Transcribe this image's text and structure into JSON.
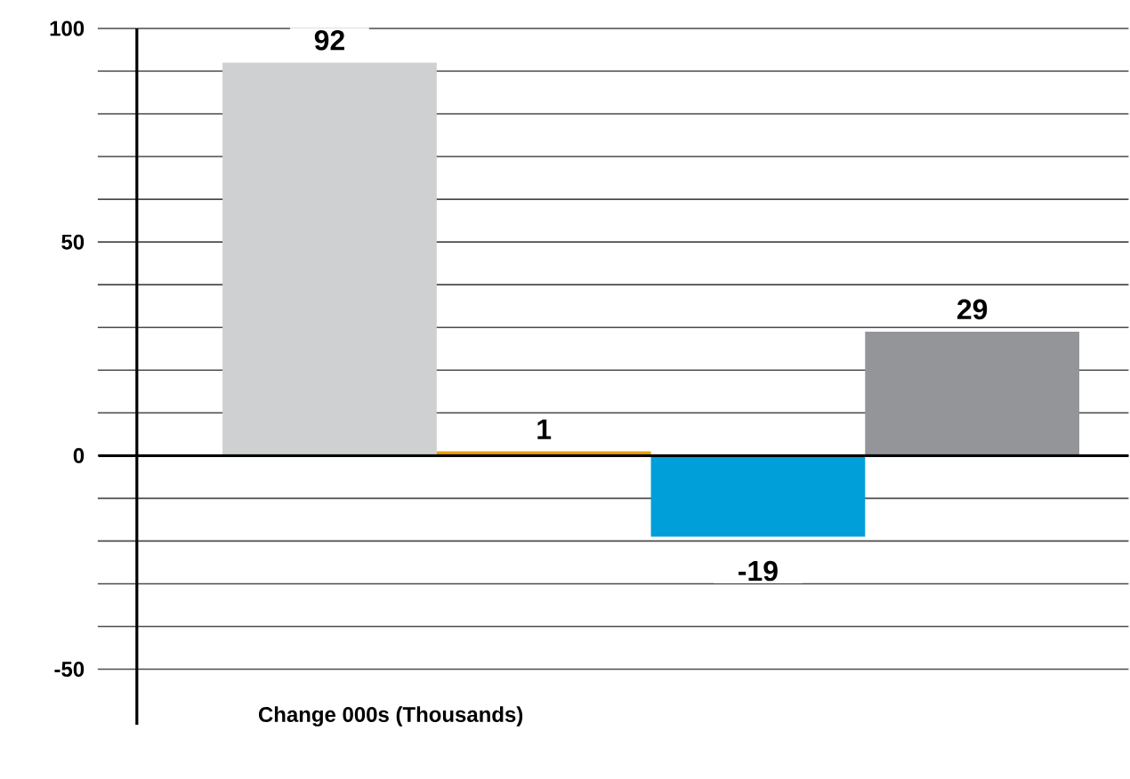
{
  "chart_data": {
    "type": "bar",
    "xlabel": "Change 000s (Thousands)",
    "categories": [
      null,
      null,
      null,
      null
    ],
    "values": [
      92,
      1,
      -19,
      29
    ],
    "colors": [
      "#cfd0d2",
      "#e8a200",
      "#009fda",
      "#939598"
    ],
    "ylim": [
      -63,
      100
    ],
    "yticks": [
      {
        "value": -50,
        "label": "-50"
      },
      {
        "value": -40,
        "label": null
      },
      {
        "value": -30,
        "label": null
      },
      {
        "value": -20,
        "label": null
      },
      {
        "value": -10,
        "label": null
      },
      {
        "value": 0,
        "label": "0"
      },
      {
        "value": 10,
        "label": null
      },
      {
        "value": 20,
        "label": null
      },
      {
        "value": 30,
        "label": null
      },
      {
        "value": 40,
        "label": null
      },
      {
        "value": 50,
        "label": "50"
      },
      {
        "value": 60,
        "label": null
      },
      {
        "value": 70,
        "label": null
      },
      {
        "value": 80,
        "label": null
      },
      {
        "value": 90,
        "label": null
      },
      {
        "value": 100,
        "label": "100"
      }
    ],
    "grid": "y",
    "data_labels": true
  }
}
